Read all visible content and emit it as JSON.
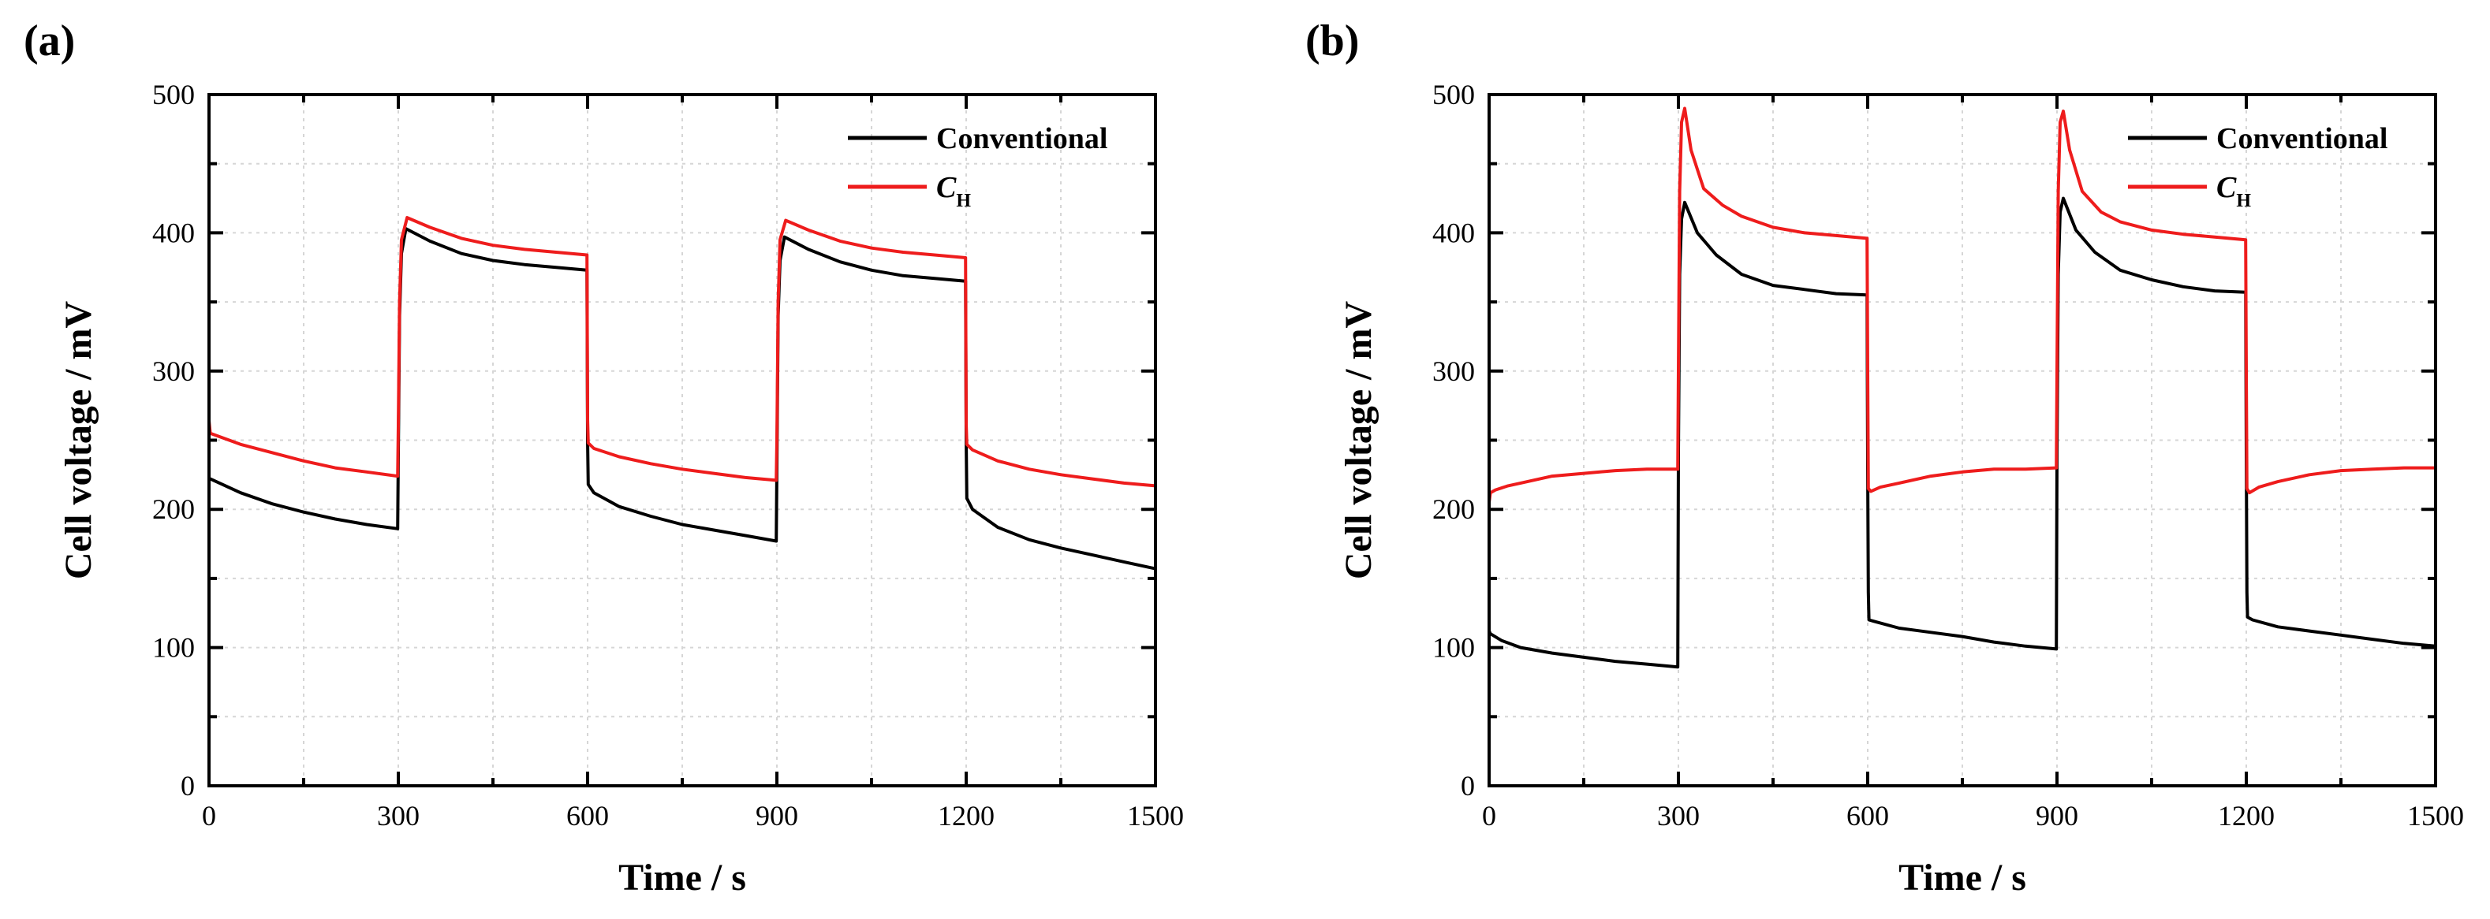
{
  "colors": {
    "conventional": "#000000",
    "ch": "#ee1c1c"
  },
  "chart_data": [
    {
      "type": "line",
      "panel_label": "(a)",
      "xlabel": "Time / s",
      "ylabel": "Cell voltage / mV",
      "xlim": [
        0,
        1500
      ],
      "ylim": [
        0,
        500
      ],
      "xticks": [
        "0",
        "300",
        "600",
        "900",
        "1200",
        "1500"
      ],
      "yticks": [
        "0",
        "100",
        "200",
        "300",
        "400",
        "500"
      ],
      "grid": true,
      "legend_position": "top-right",
      "series": [
        {
          "name": "Conventional",
          "color": "#000000",
          "x": [
            0,
            2,
            50,
            100,
            150,
            200,
            250,
            299,
            300,
            302,
            305,
            312,
            350,
            400,
            450,
            500,
            550,
            599,
            600,
            601,
            610,
            650,
            700,
            750,
            800,
            850,
            899,
            900,
            902,
            905,
            912,
            950,
            1000,
            1050,
            1100,
            1150,
            1199,
            1200,
            1201,
            1210,
            1250,
            1300,
            1350,
            1400,
            1450,
            1500
          ],
          "y": [
            222,
            222,
            212,
            204,
            198,
            193,
            189,
            186,
            240,
            340,
            385,
            403,
            394,
            385,
            380,
            377,
            375,
            373,
            250,
            218,
            212,
            202,
            195,
            189,
            185,
            181,
            177,
            230,
            340,
            380,
            397,
            388,
            379,
            373,
            369,
            367,
            365,
            250,
            208,
            200,
            187,
            178,
            172,
            167,
            162,
            157
          ]
        },
        {
          "name": "C",
          "name_subscript": "H",
          "color": "#ee1c1c",
          "x": [
            0,
            2,
            50,
            100,
            150,
            200,
            250,
            299,
            300,
            302,
            305,
            314,
            350,
            400,
            450,
            500,
            550,
            599,
            600,
            601,
            610,
            650,
            700,
            750,
            800,
            850,
            899,
            900,
            902,
            905,
            914,
            950,
            1000,
            1050,
            1100,
            1150,
            1199,
            1200,
            1201,
            1210,
            1250,
            1300,
            1350,
            1400,
            1450,
            1500
          ],
          "y": [
            264,
            255,
            247,
            241,
            235,
            230,
            227,
            224,
            260,
            350,
            395,
            411,
            404,
            396,
            391,
            388,
            386,
            384,
            265,
            248,
            244,
            238,
            233,
            229,
            226,
            223,
            221,
            250,
            350,
            395,
            409,
            402,
            394,
            389,
            386,
            384,
            382,
            262,
            247,
            243,
            235,
            229,
            225,
            222,
            219,
            217
          ]
        }
      ]
    },
    {
      "type": "line",
      "panel_label": "(b)",
      "xlabel": "Time / s",
      "ylabel": "Cell voltage / mV",
      "xlim": [
        0,
        1500
      ],
      "ylim": [
        0,
        500
      ],
      "xticks": [
        "0",
        "300",
        "600",
        "900",
        "1200",
        "1500"
      ],
      "yticks": [
        "0",
        "100",
        "200",
        "300",
        "400",
        "500"
      ],
      "grid": true,
      "legend_position": "top-right",
      "series": [
        {
          "name": "Conventional",
          "color": "#000000",
          "x": [
            0,
            2,
            20,
            50,
            100,
            150,
            200,
            250,
            299,
            300,
            302,
            305,
            310,
            330,
            360,
            400,
            450,
            500,
            550,
            599,
            600,
            601,
            602,
            610,
            650,
            700,
            750,
            800,
            850,
            899,
            900,
            902,
            905,
            910,
            930,
            960,
            1000,
            1050,
            1100,
            1150,
            1199,
            1200,
            1201,
            1202,
            1210,
            1250,
            1300,
            1350,
            1400,
            1450,
            1500
          ],
          "y": [
            112,
            110,
            105,
            100,
            96,
            93,
            90,
            88,
            86,
            240,
            370,
            410,
            422,
            400,
            384,
            370,
            362,
            359,
            356,
            355,
            230,
            140,
            120,
            119,
            114,
            111,
            108,
            104,
            101,
            99,
            240,
            370,
            415,
            425,
            402,
            386,
            373,
            366,
            361,
            358,
            357,
            240,
            140,
            122,
            120,
            115,
            112,
            109,
            106,
            103,
            101
          ]
        },
        {
          "name": "C",
          "name_subscript": "H",
          "color": "#ee1c1c",
          "x": [
            0,
            2,
            10,
            30,
            50,
            100,
            150,
            200,
            250,
            299,
            300,
            302,
            305,
            310,
            320,
            340,
            370,
            400,
            450,
            500,
            550,
            599,
            600,
            601,
            605,
            620,
            650,
            700,
            750,
            800,
            850,
            899,
            900,
            902,
            905,
            910,
            920,
            940,
            970,
            1000,
            1050,
            1100,
            1150,
            1199,
            1200,
            1201,
            1205,
            1220,
            1250,
            1300,
            1350,
            1400,
            1450,
            1500
          ],
          "y": [
            205,
            212,
            214,
            217,
            219,
            224,
            226,
            228,
            229,
            229,
            300,
            430,
            480,
            490,
            460,
            432,
            420,
            412,
            404,
            400,
            398,
            396,
            300,
            215,
            213,
            216,
            219,
            224,
            227,
            229,
            229,
            230,
            300,
            430,
            480,
            488,
            460,
            430,
            415,
            408,
            402,
            399,
            397,
            395,
            300,
            215,
            212,
            216,
            220,
            225,
            228,
            229,
            230,
            230
          ]
        }
      ]
    }
  ]
}
